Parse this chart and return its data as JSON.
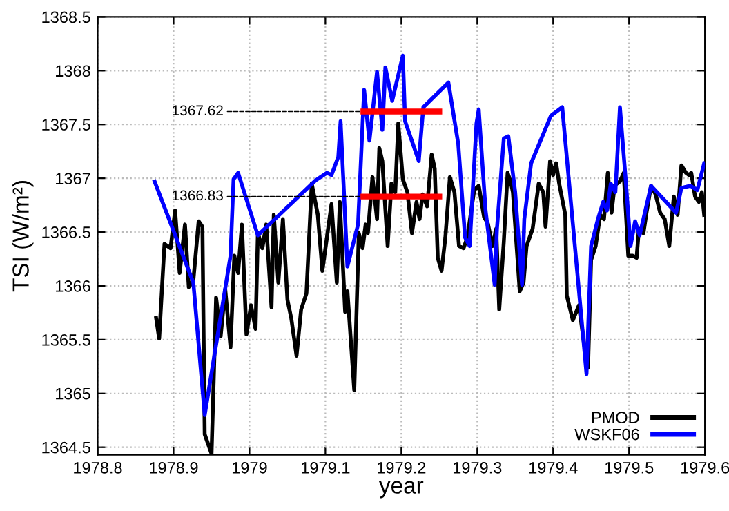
{
  "chart_data": {
    "type": "line",
    "xlabel": "year",
    "ylabel": "TSI (W/m²)",
    "xlim": [
      1978.8,
      1979.6
    ],
    "xticks": [
      1978.8,
      1978.9,
      1979,
      1979.1,
      1979.2,
      1979.3,
      1979.4,
      1979.5,
      1979.6
    ],
    "ylim": [
      1364.43,
      1368.5
    ],
    "yticks": [
      1364.5,
      1365,
      1365.5,
      1366,
      1366.5,
      1367,
      1367.5,
      1368,
      1368.5
    ],
    "grid": true,
    "legend": "bottom right",
    "marker": "none",
    "line_style": "solid",
    "series": [
      {
        "name": "PMOD",
        "color": "#000000",
        "x": [
          1978.877,
          1978.881,
          1978.888,
          1978.896,
          1978.902,
          1978.908,
          1978.915,
          1978.92,
          1978.926,
          1978.933,
          1978.938,
          1978.941,
          1978.95,
          1978.956,
          1978.962,
          1978.968,
          1978.975,
          1978.98,
          1978.985,
          1978.99,
          1978.996,
          1979.002,
          1979.008,
          1979.011,
          1979.017,
          1979.022,
          1979.029,
          1979.032,
          1979.038,
          1979.044,
          1979.05,
          1979.055,
          1979.062,
          1979.068,
          1979.075,
          1979.082,
          1979.09,
          1979.096,
          1979.108,
          1979.115,
          1979.119,
          1979.126,
          1979.129,
          1979.138,
          1979.144,
          1979.149,
          1979.153,
          1979.156,
          1979.162,
          1979.168,
          1979.171,
          1979.175,
          1979.182,
          1979.187,
          1979.192,
          1979.196,
          1979.202,
          1979.208,
          1979.214,
          1979.22,
          1979.224,
          1979.228,
          1979.234,
          1979.24,
          1979.244,
          1979.248,
          1979.253,
          1979.258,
          1979.264,
          1979.27,
          1979.276,
          1979.282,
          1979.287,
          1979.296,
          1979.302,
          1979.309,
          1979.314,
          1979.32,
          1979.325,
          1979.329,
          1979.335,
          1979.34,
          1979.344,
          1979.347,
          1979.356,
          1979.361,
          1979.365,
          1979.373,
          1979.381,
          1979.387,
          1979.39,
          1979.396,
          1979.4,
          1979.404,
          1979.408,
          1979.416,
          1979.418,
          1979.426,
          1979.434,
          1979.441,
          1979.446,
          1979.45,
          1979.456,
          1979.462,
          1979.467,
          1979.472,
          1979.477,
          1979.481,
          1979.484,
          1979.488,
          1979.493,
          1979.499,
          1979.505,
          1979.51,
          1979.513,
          1979.519,
          1979.523,
          1979.529,
          1979.535,
          1979.541,
          1979.547,
          1979.553,
          1979.559,
          1979.564,
          1979.569,
          1979.575,
          1979.579,
          1979.582,
          1979.587,
          1979.592,
          1979.596,
          1979.599
        ],
        "values": [
          1365.7,
          1365.51,
          1366.39,
          1366.35,
          1366.7,
          1366.12,
          1366.57,
          1365.99,
          1366.05,
          1366.6,
          1366.55,
          1364.62,
          1364.44,
          1365.89,
          1365.53,
          1365.97,
          1365.43,
          1366.28,
          1366.12,
          1366.57,
          1365.55,
          1365.82,
          1365.6,
          1366.49,
          1366.35,
          1366.57,
          1365.8,
          1366.66,
          1366.03,
          1366.62,
          1365.87,
          1365.7,
          1365.35,
          1365.78,
          1365.93,
          1366.95,
          1366.66,
          1366.14,
          1366.76,
          1366.03,
          1366.78,
          1365.76,
          1365.95,
          1365.03,
          1366.49,
          1366.35,
          1366.57,
          1366.49,
          1367.01,
          1366.62,
          1367.28,
          1367.16,
          1366.37,
          1366.95,
          1366.87,
          1367.51,
          1366.99,
          1366.87,
          1366.49,
          1366.78,
          1366.62,
          1366.85,
          1366.74,
          1367.22,
          1367.09,
          1366.26,
          1366.14,
          1366.45,
          1367.01,
          1366.87,
          1366.37,
          1366.35,
          1366.45,
          1366.89,
          1366.93,
          1366.64,
          1366.58,
          1366.37,
          1366.53,
          1365.78,
          1366.41,
          1367.05,
          1366.97,
          1366.87,
          1365.95,
          1366.03,
          1366.37,
          1366.53,
          1366.95,
          1366.87,
          1366.55,
          1367.16,
          1367.03,
          1367.14,
          1366.95,
          1366.66,
          1365.91,
          1365.68,
          1365.82,
          1365.45,
          1365.24,
          1366.24,
          1366.37,
          1366.66,
          1366.62,
          1367.05,
          1366.68,
          1366.93,
          1366.95,
          1366.97,
          1367.05,
          1366.28,
          1366.28,
          1366.26,
          1366.53,
          1366.49,
          1366.68,
          1366.93,
          1366.85,
          1366.68,
          1366.62,
          1366.37,
          1366.83,
          1366.66,
          1367.12,
          1367.05,
          1367.03,
          1367.05,
          1366.83,
          1366.78,
          1366.87,
          1366.66
        ]
      },
      {
        "name": "WSKF06",
        "color": "#0000ff",
        "x": [
          1978.875,
          1978.926,
          1978.941,
          1978.975,
          1978.979,
          1978.985,
          1979.011,
          1979.087,
          1979.102,
          1979.108,
          1979.117,
          1979.12,
          1979.129,
          1979.143,
          1979.151,
          1979.158,
          1979.168,
          1979.175,
          1979.179,
          1979.188,
          1979.202,
          1979.205,
          1979.223,
          1979.229,
          1979.262,
          1979.275,
          1979.284,
          1979.29,
          1979.299,
          1979.302,
          1979.311,
          1979.323,
          1979.326,
          1979.335,
          1979.341,
          1979.35,
          1979.359,
          1979.362,
          1979.371,
          1979.397,
          1979.412,
          1979.444,
          1979.45,
          1979.459,
          1979.466,
          1979.471,
          1979.476,
          1979.482,
          1979.488,
          1979.496,
          1979.502,
          1979.508,
          1979.514,
          1979.529,
          1979.562,
          1979.569,
          1979.581,
          1979.59,
          1979.599
        ],
        "values": [
          1366.97,
          1366.03,
          1364.8,
          1366.28,
          1366.99,
          1367.05,
          1366.47,
          1366.98,
          1367.05,
          1367.03,
          1367.2,
          1367.53,
          1366.18,
          1366.57,
          1367.82,
          1367.35,
          1367.99,
          1367.45,
          1368.03,
          1367.72,
          1368.14,
          1367.53,
          1367.16,
          1367.66,
          1367.89,
          1367.32,
          1366.45,
          1366.37,
          1367.51,
          1367.64,
          1366.7,
          1366.01,
          1366.53,
          1367.37,
          1367.39,
          1366.87,
          1366.01,
          1366.62,
          1367.14,
          1367.58,
          1367.66,
          1365.18,
          1366.37,
          1366.62,
          1366.78,
          1366.7,
          1366.95,
          1366.87,
          1367.66,
          1366.95,
          1366.37,
          1366.6,
          1366.47,
          1366.93,
          1366.68,
          1366.91,
          1366.93,
          1366.89,
          1367.14
        ]
      },
      {
        "color": "#ff0000",
        "x": [
          1979.15,
          1979.25
        ],
        "values": [
          1367.62,
          1367.62
        ]
      },
      {
        "color": "#ff0000",
        "x": [
          1979.15,
          1979.25
        ],
        "values": [
          1366.83,
          1366.83
        ]
      }
    ],
    "annotations": [
      {
        "text": "1367.62",
        "x": 1979.15,
        "y": 1367.62
      },
      {
        "text": "1366.83",
        "x": 1979.15,
        "y": 1366.83
      }
    ]
  }
}
